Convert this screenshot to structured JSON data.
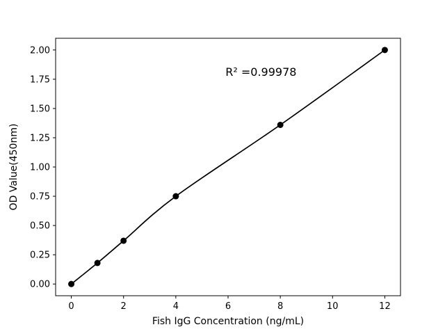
{
  "figure": {
    "background": "#ffffff"
  },
  "chart_data": {
    "type": "scatter",
    "title": "",
    "xlabel": "Fish IgG Concentration (ng/mL)",
    "ylabel": "OD Value(450nm)",
    "x": [
      0,
      1,
      2,
      4,
      8,
      12
    ],
    "y": [
      0.0,
      0.18,
      0.37,
      0.75,
      1.36,
      2.0
    ],
    "fit_curve": true,
    "annotation": {
      "text": "R² =0.99978",
      "x": 5.9,
      "y": 1.78
    },
    "xticks": [
      0,
      2,
      4,
      6,
      8,
      10,
      12
    ],
    "yticks": [
      0,
      0.25,
      0.5,
      0.75,
      1,
      1.25,
      1.5,
      1.75,
      2
    ],
    "xlim": [
      -0.6,
      12.6
    ],
    "ylim": [
      -0.1,
      2.1
    ],
    "grid": false,
    "legend": null,
    "colors": {
      "line": "#000000",
      "marker": "#000000",
      "axes": "#000000"
    }
  }
}
